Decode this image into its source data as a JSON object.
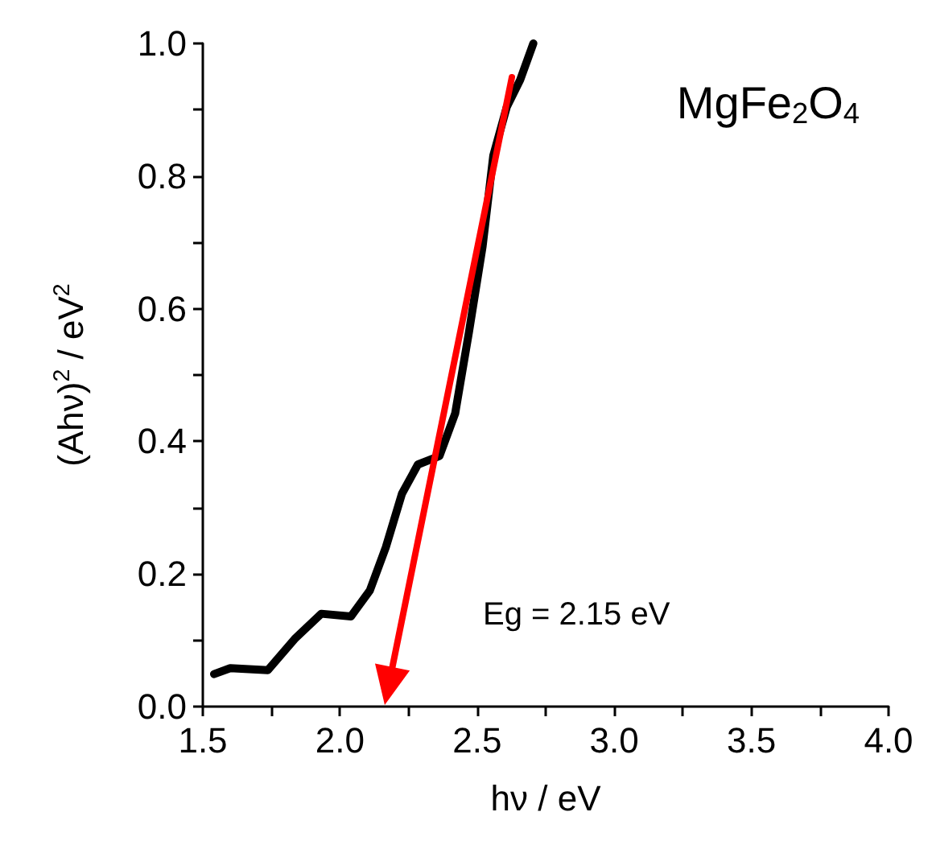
{
  "chart_data": {
    "type": "line",
    "xlabel": "hν / eV",
    "ylabel": "(Ahν)$^{2}$ / eV$^{2}$",
    "annotations": [
      "MgFe$_{2}$O$_{4}$",
      "Eg = 2.15 eV"
    ],
    "series": [
      {
        "color": "#000000",
        "x": [
          1.541,
          1.6,
          1.737,
          1.835,
          1.932,
          2.04,
          2.109,
          2.167,
          2.226,
          2.284,
          2.363,
          2.42,
          2.47,
          2.52,
          2.559,
          2.608,
          2.657,
          2.705
        ],
        "values": [
          0.049,
          0.058,
          0.055,
          0.102,
          0.14,
          0.136,
          0.175,
          0.24,
          0.321,
          0.365,
          0.378,
          0.442,
          0.564,
          0.694,
          0.831,
          0.904,
          0.945,
          1.0
        ]
      }
    ],
    "xlim": [
      1.5,
      4.0
    ],
    "xticks": [
      {
        "value": 1.5,
        "label": "1.5"
      },
      {
        "value": 1.75,
        "label": null
      },
      {
        "value": 2,
        "label": "2.0"
      },
      {
        "value": 2.25,
        "label": null
      },
      {
        "value": 2.5,
        "label": "2.5"
      },
      {
        "value": 2.75,
        "label": null
      },
      {
        "value": 3,
        "label": "3.0"
      },
      {
        "value": 3.25,
        "label": null
      },
      {
        "value": 3.5,
        "label": "3.5"
      },
      {
        "value": 3.75,
        "label": null
      },
      {
        "value": 4,
        "label": "4.0"
      }
    ],
    "ylim": [
      0,
      1.0
    ],
    "yticks": [
      {
        "value": 0,
        "label": "0.0"
      },
      {
        "value": 0.1,
        "label": null
      },
      {
        "value": 0.2,
        "label": "0.2"
      },
      {
        "value": 0.3,
        "label": null
      },
      {
        "value": 0.4,
        "label": "0.4"
      },
      {
        "value": 0.5,
        "label": null
      },
      {
        "value": 0.6,
        "label": "0.6"
      },
      {
        "value": 0.7,
        "label": null
      },
      {
        "value": 0.8,
        "label": "0.8"
      },
      {
        "value": 0.9,
        "label": null
      },
      {
        "value": 1,
        "label": "1.0"
      }
    ],
    "grid": false,
    "marker": "none",
    "line_style": "solid"
  }
}
